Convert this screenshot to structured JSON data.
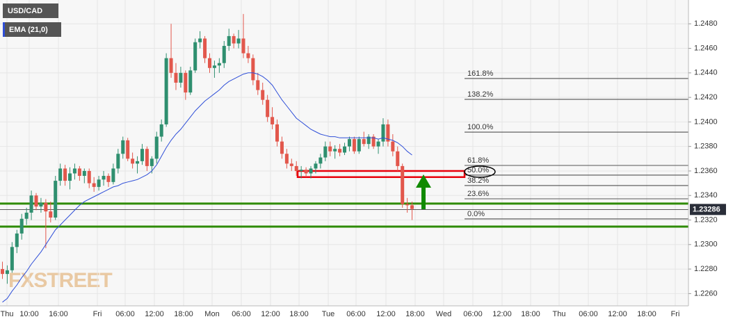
{
  "chart_data": {
    "type": "candlestick",
    "watermark": "FXSTREET",
    "ylim": [
      1.225,
      1.25
    ],
    "yticks": [
      {
        "value": 1.226,
        "label": "1.2260"
      },
      {
        "value": 1.228,
        "label": "1.2280"
      },
      {
        "value": 1.23,
        "label": "1.2300"
      },
      {
        "value": 1.232,
        "label": "1.2320"
      },
      {
        "value": 1.234,
        "label": "1.2340"
      },
      {
        "value": 1.236,
        "label": "1.2360"
      },
      {
        "value": 1.238,
        "label": "1.2380"
      },
      {
        "value": 1.24,
        "label": "1.2400"
      },
      {
        "value": 1.242,
        "label": "1.2420"
      },
      {
        "value": 1.244,
        "label": "1.2440"
      },
      {
        "value": 1.246,
        "label": "1.2460"
      },
      {
        "value": 1.248,
        "label": "1.2480"
      }
    ],
    "xtick_labels": [
      "Thu",
      "10:00",
      "16:00",
      "Fri",
      "06:00",
      "12:00",
      "18:00",
      "Mon",
      "06:00",
      "12:00",
      "18:00",
      "Tue",
      "06:00",
      "12:00",
      "18:00",
      "Wed",
      "06:00",
      "12:00",
      "18:00",
      "Thu",
      "06:00",
      "12:00",
      "18:00",
      "Fri"
    ],
    "grid": true,
    "series": [
      {
        "name": "USD/CAD",
        "up_color": "#2f8f6f",
        "down_color": "#e2574c",
        "open": [
          1.228,
          1.2276,
          1.2279,
          1.2298,
          1.2309,
          1.2321,
          1.2326,
          1.234,
          1.2331,
          1.2334,
          1.2327,
          1.2322,
          1.2352,
          1.2362,
          1.2352,
          1.2358,
          1.2362,
          1.2356,
          1.236,
          1.235,
          1.2347,
          1.2353,
          1.2356,
          1.2351,
          1.2362,
          1.2374,
          1.2385,
          1.237,
          1.2366,
          1.2368,
          1.2378,
          1.2364,
          1.237,
          1.2388,
          1.2398,
          1.2452,
          1.244,
          1.2432,
          1.244,
          1.2424,
          1.2442,
          1.2465,
          1.2468,
          1.2452,
          1.2444,
          1.2446,
          1.2448,
          1.2462,
          1.247,
          1.2464,
          1.2468,
          1.2456,
          1.2452,
          1.2434,
          1.2426,
          1.2418,
          1.2404,
          1.2398,
          1.2384,
          1.2374,
          1.2366,
          1.2364,
          1.236,
          1.2361,
          1.2358,
          1.2362,
          1.2366,
          1.2371,
          1.238,
          1.2376,
          1.2378,
          1.2375,
          1.238,
          1.2386,
          1.2376,
          1.2386,
          1.2382,
          1.2388,
          1.238,
          1.2384,
          1.2398,
          1.2384,
          1.2376,
          1.2364,
          1.2333,
          1.2332
        ],
        "high": [
          1.2286,
          1.2283,
          1.2302,
          1.2312,
          1.2325,
          1.233,
          1.2344,
          1.2342,
          1.2338,
          1.2337,
          1.2335,
          1.2356,
          1.2366,
          1.2365,
          1.2363,
          1.2366,
          1.2364,
          1.2362,
          1.2362,
          1.2355,
          1.2356,
          1.236,
          1.2358,
          1.2366,
          1.2378,
          1.2388,
          1.2387,
          1.2375,
          1.2372,
          1.2382,
          1.238,
          1.2372,
          1.2392,
          1.2402,
          1.2456,
          1.248,
          1.2448,
          1.2445,
          1.2442,
          1.2445,
          1.2468,
          1.2474,
          1.247,
          1.2456,
          1.245,
          1.2452,
          1.2466,
          1.2476,
          1.2472,
          1.2475,
          1.2488,
          1.2462,
          1.2455,
          1.244,
          1.2432,
          1.2422,
          1.2412,
          1.2402,
          1.2388,
          1.2378,
          1.237,
          1.2368,
          1.2364,
          1.2363,
          1.2364,
          1.2368,
          1.2374,
          1.2384,
          1.2384,
          1.2381,
          1.2382,
          1.2383,
          1.2388,
          1.2388,
          1.2388,
          1.2392,
          1.239,
          1.239,
          1.2386,
          1.2403,
          1.2402,
          1.239,
          1.238,
          1.2366,
          1.2338,
          1.2335
        ],
        "low": [
          1.2272,
          1.2268,
          1.2277,
          1.2293,
          1.2304,
          1.2316,
          1.232,
          1.2328,
          1.2326,
          1.2297,
          1.2318,
          1.232,
          1.2348,
          1.2348,
          1.2345,
          1.2353,
          1.2352,
          1.235,
          1.2346,
          1.2343,
          1.2344,
          1.2348,
          1.2347,
          1.2349,
          1.2358,
          1.237,
          1.2368,
          1.2362,
          1.2358,
          1.2365,
          1.236,
          1.2358,
          1.2366,
          1.2384,
          1.2396,
          1.2436,
          1.2426,
          1.2428,
          1.2418,
          1.2422,
          1.244,
          1.246,
          1.2448,
          1.244,
          1.2436,
          1.244,
          1.2444,
          1.2458,
          1.246,
          1.246,
          1.2452,
          1.2448,
          1.243,
          1.2422,
          1.2414,
          1.24,
          1.2394,
          1.238,
          1.237,
          1.2362,
          1.236,
          1.2356,
          1.2354,
          1.2355,
          1.2354,
          1.2358,
          1.2362,
          1.2368,
          1.2372,
          1.237,
          1.2372,
          1.2373,
          1.2376,
          1.2374,
          1.2374,
          1.238,
          1.2378,
          1.2378,
          1.2374,
          1.238,
          1.238,
          1.2372,
          1.236,
          1.233,
          1.2326,
          1.232
        ],
        "close": [
          1.2276,
          1.2279,
          1.2298,
          1.2309,
          1.2321,
          1.2326,
          1.234,
          1.2331,
          1.2334,
          1.2327,
          1.2322,
          1.2352,
          1.2362,
          1.2352,
          1.2358,
          1.2362,
          1.2356,
          1.236,
          1.235,
          1.2347,
          1.2353,
          1.2356,
          1.2351,
          1.2362,
          1.2374,
          1.2385,
          1.237,
          1.2366,
          1.2368,
          1.2378,
          1.2364,
          1.237,
          1.2388,
          1.2398,
          1.2452,
          1.244,
          1.2432,
          1.244,
          1.2424,
          1.2442,
          1.2465,
          1.2468,
          1.2452,
          1.2444,
          1.2446,
          1.2448,
          1.2462,
          1.247,
          1.2464,
          1.2468,
          1.2456,
          1.2452,
          1.2434,
          1.2426,
          1.2418,
          1.2404,
          1.2398,
          1.2384,
          1.2374,
          1.2366,
          1.2364,
          1.236,
          1.2361,
          1.2358,
          1.2362,
          1.2366,
          1.2371,
          1.238,
          1.2376,
          1.2378,
          1.2375,
          1.238,
          1.2386,
          1.2376,
          1.2386,
          1.2382,
          1.2388,
          1.238,
          1.2384,
          1.2398,
          1.2384,
          1.2376,
          1.2364,
          1.2333,
          1.2332,
          1.2329
        ]
      },
      {
        "name": "EMA (21,0)",
        "color": "#2f4fd8",
        "values": [
          1.2253,
          1.2256,
          1.2262,
          1.2267,
          1.2273,
          1.2278,
          1.2284,
          1.2289,
          1.2294,
          1.23,
          1.2306,
          1.2312,
          1.2316,
          1.232,
          1.2324,
          1.2328,
          1.2332,
          1.2335,
          1.2337,
          1.2339,
          1.2341,
          1.2343,
          1.2345,
          1.2347,
          1.2348,
          1.235,
          1.2351,
          1.2352,
          1.2353,
          1.2355,
          1.2357,
          1.236,
          1.2365,
          1.2372,
          1.2379,
          1.2385,
          1.239,
          1.2394,
          1.2399,
          1.2404,
          1.2409,
          1.2413,
          1.2417,
          1.242,
          1.2423,
          1.2426,
          1.243,
          1.2433,
          1.2435,
          1.2437,
          1.2439,
          1.244,
          1.244,
          1.2439,
          1.2437,
          1.2434,
          1.243,
          1.2424,
          1.2418,
          1.2413,
          1.2408,
          1.2403,
          1.24,
          1.2397,
          1.2394,
          1.2392,
          1.239,
          1.2389,
          1.2388,
          1.2388,
          1.2387,
          1.2387,
          1.2387,
          1.2387,
          1.2387,
          1.2387,
          1.2387,
          1.2387,
          1.2386,
          1.2387,
          1.2386,
          1.2385,
          1.2383,
          1.238,
          1.2376,
          1.2373
        ]
      }
    ],
    "last_price": 1.23286,
    "fibonacci": [
      {
        "name": "161.8%",
        "price": 1.24354
      },
      {
        "name": "138.2%",
        "price": 1.24184
      },
      {
        "name": "100.0%",
        "price": 1.23917
      },
      {
        "name": "61.8%",
        "price": 1.23645
      },
      {
        "name": "50.0%",
        "price": 1.23566
      },
      {
        "name": "38.2%",
        "price": 1.23481
      },
      {
        "name": "23.6%",
        "price": 1.23373
      },
      {
        "name": "0.0%",
        "price": 1.23209
      }
    ],
    "support_lines": {
      "color": "#2e8b00",
      "prices": [
        1.23334,
        1.23146
      ]
    },
    "resistance_zone": {
      "color": "#e8000b",
      "low": 1.2355,
      "high": 1.236
    }
  }
}
